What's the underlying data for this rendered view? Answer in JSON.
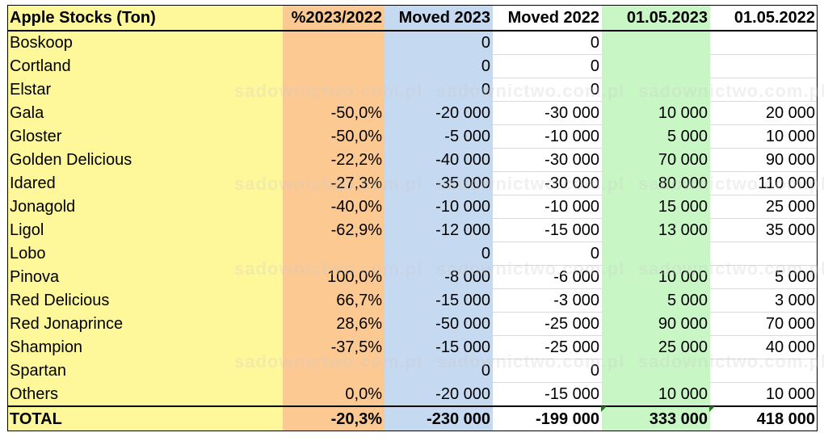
{
  "watermark": "sadownictwo.com.pl",
  "columns": [
    "Apple Stocks (Ton)",
    "%2023/2022",
    "Moved 2023",
    "Moved 2022",
    "01.05.2023",
    "01.05.2022"
  ],
  "rows": [
    [
      "Boskoop",
      "",
      "0",
      "0",
      "",
      ""
    ],
    [
      "Cortland",
      "",
      "0",
      "0",
      "",
      ""
    ],
    [
      "Elstar",
      "",
      "0",
      "0",
      "",
      ""
    ],
    [
      "Gala",
      "-50,0%",
      "-20 000",
      "-30 000",
      "10 000",
      "20 000"
    ],
    [
      "Gloster",
      "-50,0%",
      "-5 000",
      "-10 000",
      "5 000",
      "10 000"
    ],
    [
      "Golden Delicious",
      "-22,2%",
      "-40 000",
      "-30 000",
      "70 000",
      "90 000"
    ],
    [
      "Idared",
      "-27,3%",
      "-35 000",
      "-30 000",
      "80 000",
      "110 000"
    ],
    [
      "Jonagold",
      "-40,0%",
      "-10 000",
      "-10 000",
      "15 000",
      "25 000"
    ],
    [
      "Ligol",
      "-62,9%",
      "-12 000",
      "-15 000",
      "13 000",
      "35 000"
    ],
    [
      "Lobo",
      "",
      "0",
      "0",
      "",
      ""
    ],
    [
      "Pinova",
      "100,0%",
      "-8 000",
      "-6 000",
      "10 000",
      "5 000"
    ],
    [
      "Red Delicious",
      "66,7%",
      "-15 000",
      "-3 000",
      "5 000",
      "3 000"
    ],
    [
      "Red Jonaprince",
      "28,6%",
      "-50 000",
      "-25 000",
      "90 000",
      "70 000"
    ],
    [
      "Shampion",
      "-37,5%",
      "-15 000",
      "-25 000",
      "25 000",
      "40 000"
    ],
    [
      "Spartan",
      "",
      "0",
      "0",
      "",
      ""
    ],
    [
      "Others",
      "0,0%",
      "-20 000",
      "-15 000",
      "10 000",
      "10 000"
    ]
  ],
  "total": [
    "TOTAL",
    "-20,3%",
    "-230 000",
    "-199 000",
    "333 000",
    "418 000"
  ],
  "colors": {
    "col0": "#fff89a",
    "col1": "#fcc992",
    "col2": "#c5d9f0",
    "col4": "#c8f7c5",
    "comment_marker": "#1f7a1f"
  }
}
